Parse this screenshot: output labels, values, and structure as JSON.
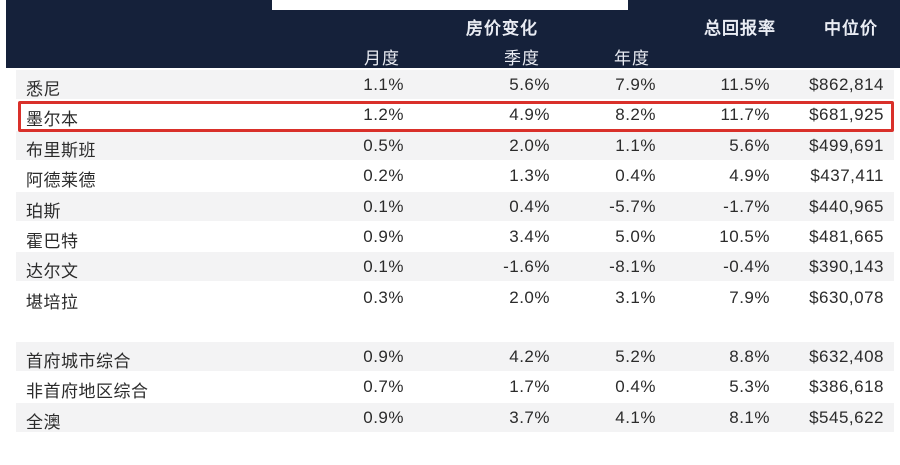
{
  "header": {
    "group_title": "房价变化",
    "total_return": "总回报率",
    "median": "中位价",
    "sub": [
      "月度",
      "季度",
      "年度"
    ]
  },
  "rows": [
    {
      "name": "悉尼",
      "month": "1.1%",
      "quarter": "5.6%",
      "year": "7.9%",
      "total": "11.5%",
      "median": "$862,814"
    },
    {
      "name": "墨尔本",
      "month": "1.2%",
      "quarter": "4.9%",
      "year": "8.2%",
      "total": "11.7%",
      "median": "$681,925"
    },
    {
      "name": "布里斯班",
      "month": "0.5%",
      "quarter": "2.0%",
      "year": "1.1%",
      "total": "5.6%",
      "median": "$499,691"
    },
    {
      "name": "阿德莱德",
      "month": "0.2%",
      "quarter": "1.3%",
      "year": "0.4%",
      "total": "4.9%",
      "median": "$437,411"
    },
    {
      "name": "珀斯",
      "month": "0.1%",
      "quarter": "0.4%",
      "year": "-5.7%",
      "total": "-1.7%",
      "median": "$440,965"
    },
    {
      "name": "霍巴特",
      "month": "0.9%",
      "quarter": "3.4%",
      "year": "5.0%",
      "total": "10.5%",
      "median": "$481,665"
    },
    {
      "name": "达尔文",
      "month": "0.1%",
      "quarter": "-1.6%",
      "year": "-8.1%",
      "total": "-0.4%",
      "median": "$390,143"
    },
    {
      "name": "堪培拉",
      "month": "0.3%",
      "quarter": "2.0%",
      "year": "3.1%",
      "total": "7.9%",
      "median": "$630,078"
    }
  ],
  "summary_rows": [
    {
      "name": "首府城市综合",
      "month": "0.9%",
      "quarter": "4.2%",
      "year": "5.2%",
      "total": "8.8%",
      "median": "$632,408"
    },
    {
      "name": "非首府地区综合",
      "month": "0.7%",
      "quarter": "1.7%",
      "year": "0.4%",
      "total": "5.3%",
      "median": "$386,618"
    },
    {
      "name": "全澳",
      "month": "0.9%",
      "quarter": "3.7%",
      "year": "4.1%",
      "total": "8.1%",
      "median": "$545,622"
    }
  ],
  "colors": {
    "header_bg": "#15213a",
    "highlight_border": "#d9302a",
    "row_alt": "#f3f3f4"
  }
}
